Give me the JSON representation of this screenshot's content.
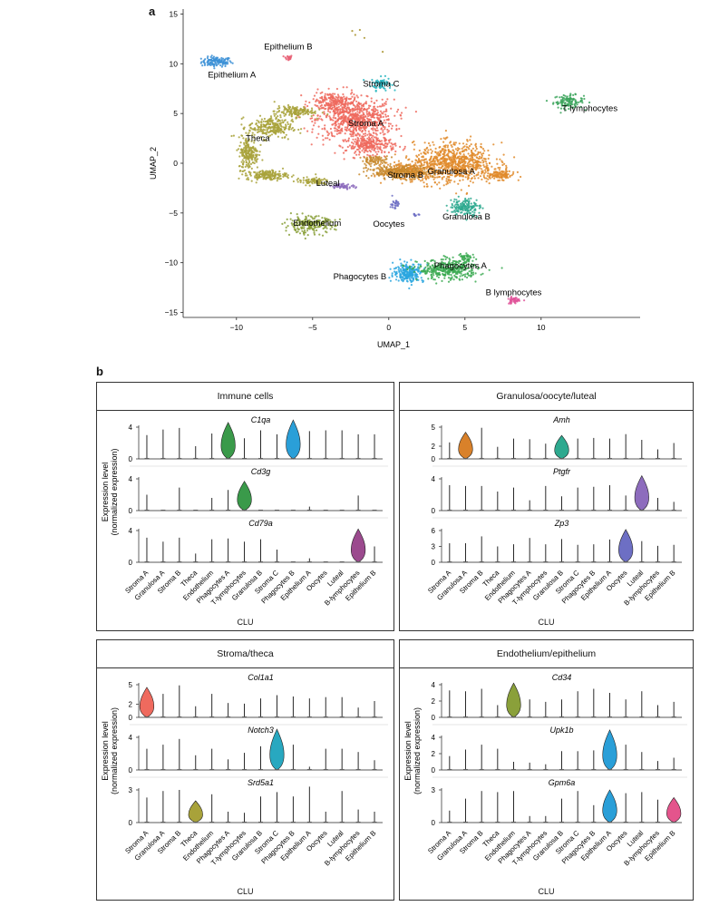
{
  "panel_labels": {
    "a": "a",
    "b": "b"
  },
  "clu_label": "CLU",
  "chart_data": [
    {
      "type": "scatter",
      "name": "umap",
      "xlabel": "UMAP_1",
      "ylabel": "UMAP_2",
      "xlim": [
        -13.5,
        16.5
      ],
      "ylim": [
        -15.5,
        15.5
      ],
      "x_ticks": [
        -10,
        -5,
        0,
        5,
        10
      ],
      "y_ticks": [
        -15,
        -10,
        -5,
        0,
        5,
        10,
        15
      ],
      "clusters": [
        {
          "label": "Epithelium A",
          "color": "#3a8fd6",
          "blobs": [
            [
              -11.3,
              10.2,
              0.9,
              0.45,
              120
            ]
          ],
          "label_pos": [
            -10.3,
            8.9
          ]
        },
        {
          "label": "Epithelium B",
          "color": "#e86075",
          "blobs": [
            [
              -6.6,
              10.6,
              0.25,
              0.25,
              25
            ]
          ],
          "label_pos": [
            -6.6,
            11.7
          ]
        },
        {
          "label": "Stroma C",
          "color": "#28b6c0",
          "blobs": [
            [
              -0.5,
              8.0,
              0.6,
              0.6,
              70
            ]
          ],
          "label_pos": [
            -0.5,
            8.0
          ]
        },
        {
          "label": "T lymphocytes",
          "color": "#3aa35a",
          "blobs": [
            [
              11.8,
              6.2,
              0.9,
              0.6,
              110
            ]
          ],
          "label_pos": [
            13.2,
            5.5
          ]
        },
        {
          "label": "Stroma A",
          "color": "#ef6a5e",
          "blobs": [
            [
              -2.2,
              4.4,
              2.3,
              1.8,
              700
            ],
            [
              -1.2,
              1.8,
              1.5,
              0.8,
              250
            ],
            [
              -3.6,
              6.2,
              1.3,
              0.9,
              200
            ]
          ],
          "label_pos": [
            -1.5,
            4.0
          ]
        },
        {
          "label": "Theca",
          "color": "#a8a23a",
          "blobs": [
            [
              -7.8,
              3.6,
              1.3,
              1.0,
              250
            ],
            [
              -9.2,
              1.0,
              0.6,
              1.5,
              200
            ],
            [
              -8.0,
              -1.2,
              1.2,
              0.45,
              160
            ],
            [
              -6.2,
              5.2,
              1.2,
              0.5,
              140
            ],
            [
              -5.0,
              -1.8,
              1.0,
              0.35,
              80
            ]
          ],
          "label_pos": [
            -8.6,
            2.5
          ]
        },
        {
          "label": "Granulosa A",
          "color": "#e18b2b",
          "blobs": [
            [
              4.3,
              0.0,
              2.4,
              1.8,
              800
            ],
            [
              7.3,
              -1.2,
              0.9,
              0.4,
              110
            ],
            [
              1.2,
              -0.8,
              1.4,
              0.8,
              230
            ]
          ],
          "label_pos": [
            4.1,
            -0.8
          ]
        },
        {
          "label": "Stroma B",
          "color": "#c88a2e",
          "blobs": [
            [
              0.6,
              -0.9,
              1.8,
              0.6,
              250
            ],
            [
              -0.9,
              0.3,
              0.8,
              0.4,
              80
            ]
          ],
          "label_pos": [
            1.1,
            -1.2
          ]
        },
        {
          "label": "Luteal",
          "color": "#8d6cbd",
          "blobs": [
            [
              -3.0,
              -2.3,
              0.7,
              0.22,
              60
            ]
          ],
          "label_pos": [
            -4.0,
            -2.0
          ]
        },
        {
          "label": "Granulosa B",
          "color": "#2ea98f",
          "blobs": [
            [
              5.0,
              -4.4,
              0.9,
              0.8,
              160
            ]
          ],
          "label_pos": [
            5.1,
            -5.4
          ]
        },
        {
          "label": "Oocytes",
          "color": "#6d6fc4",
          "blobs": [
            [
              0.4,
              -4.1,
              0.25,
              0.5,
              30
            ],
            [
              1.7,
              -5.2,
              0.25,
              0.12,
              10
            ]
          ],
          "label_pos": [
            0.0,
            -6.1
          ]
        },
        {
          "label": "Endothelium",
          "color": "#8aa03a",
          "blobs": [
            [
              -5.2,
              -6.2,
              1.5,
              0.75,
              220
            ]
          ],
          "label_pos": [
            -4.7,
            -6.0
          ]
        },
        {
          "label": "Phagocytes B",
          "color": "#2aa6df",
          "blobs": [
            [
              1.3,
              -11.0,
              0.9,
              0.85,
              240
            ]
          ],
          "label_pos": [
            -1.9,
            -11.4
          ]
        },
        {
          "label": "Phagocytes A",
          "color": "#3caa52",
          "blobs": [
            [
              3.9,
              -10.7,
              1.8,
              0.9,
              360
            ],
            [
              5.0,
              -9.5,
              0.5,
              0.4,
              40
            ]
          ],
          "label_pos": [
            4.7,
            -10.3
          ]
        },
        {
          "label": "B lymphocytes",
          "color": "#e0559a",
          "blobs": [
            [
              8.2,
              -13.8,
              0.35,
              0.3,
              50
            ]
          ],
          "label_pos": [
            8.2,
            -13.0
          ]
        }
      ],
      "stray_points": [
        [
          -1.9,
          13.4
        ],
        [
          -2.4,
          13.3
        ],
        [
          -2.2,
          12.9
        ],
        [
          -1.6,
          12.6
        ],
        [
          -0.4,
          11.2
        ]
      ]
    },
    {
      "type": "violin",
      "name": "immune-cells",
      "title": "Immune cells",
      "ylabel": "Expression level\n(normalized expression)",
      "categories": [
        "Stroma A",
        "Granulosa A",
        "Stroma B",
        "Theca",
        "Endothelium",
        "Phagocytes A",
        "T-lymphocytes",
        "Granulosa B",
        "Stroma C",
        "Phagocytes B",
        "Epithelium A",
        "Oocytes",
        "Luteal",
        "B-lymphocytes",
        "Epithelium B"
      ],
      "genes": [
        {
          "gene": "C1qa",
          "ymax": 4,
          "ticks": [
            0,
            4
          ],
          "highlight": [
            5,
            9
          ],
          "highlight_colors": [
            "#3a9a4a",
            "#2a9fd8"
          ],
          "max_values": [
            3.0,
            3.7,
            3.9,
            1.6,
            3.2,
            4.6,
            2.6,
            3.6,
            3.1,
            4.9,
            3.5,
            3.6,
            3.6,
            3.1,
            3.1
          ]
        },
        {
          "gene": "Cd3g",
          "ymax": 4,
          "ticks": [
            0,
            4
          ],
          "highlight": [
            6
          ],
          "highlight_colors": [
            "#3a9a4a"
          ],
          "max_values": [
            2.0,
            0.0,
            2.9,
            0.0,
            1.6,
            2.6,
            3.7,
            0.0,
            0.0,
            0.0,
            0.5,
            0.0,
            0.0,
            1.9,
            0.0
          ]
        },
        {
          "gene": "Cd79a",
          "ymax": 4,
          "ticks": [
            0,
            4
          ],
          "highlight": [
            13
          ],
          "highlight_colors": [
            "#9b4a8e"
          ],
          "max_values": [
            3.1,
            2.6,
            3.1,
            1.1,
            2.9,
            3.0,
            2.6,
            2.9,
            1.6,
            0.0,
            0.5,
            0.0,
            0.0,
            4.2,
            2.0
          ]
        }
      ]
    },
    {
      "type": "violin",
      "name": "granulosa-oocyte-luteal",
      "title": "Granulosa/oocyte/luteal",
      "ylabel": "",
      "categories": [
        "Stroma A",
        "Granulosa A",
        "Stroma B",
        "Theca",
        "Endothelium",
        "Phagocytes A",
        "T-lymphocytes",
        "Granulosa B",
        "Stroma C",
        "Phagocytes B",
        "Epithelium A",
        "Oocytes",
        "Luteal",
        "B-lymphocytes",
        "Epithelium B"
      ],
      "genes": [
        {
          "gene": "Amh",
          "ymax": 5,
          "ticks": [
            0,
            2,
            5
          ],
          "highlight": [
            1,
            7
          ],
          "highlight_colors": [
            "#d9812a",
            "#2ea98f"
          ],
          "max_values": [
            2.6,
            4.2,
            4.9,
            1.9,
            3.2,
            3.1,
            2.4,
            3.7,
            3.2,
            3.3,
            3.2,
            3.9,
            3.0,
            1.5,
            2.5
          ]
        },
        {
          "gene": "Ptgfr",
          "ymax": 4,
          "ticks": [
            0,
            4
          ],
          "highlight": [
            12
          ],
          "highlight_colors": [
            "#8d6cbd"
          ],
          "max_values": [
            3.2,
            3.1,
            3.1,
            2.4,
            2.9,
            1.3,
            3.1,
            1.8,
            2.9,
            3.0,
            3.2,
            1.9,
            4.4,
            1.6,
            1.1
          ]
        },
        {
          "gene": "Zp3",
          "ymax": 6,
          "ticks": [
            0,
            3,
            6
          ],
          "highlight": [
            11
          ],
          "highlight_colors": [
            "#6d6fc4"
          ],
          "max_values": [
            3.6,
            3.6,
            4.9,
            3.0,
            3.4,
            4.6,
            3.4,
            4.4,
            3.3,
            3.4,
            4.3,
            6.2,
            4.0,
            3.1,
            3.3
          ]
        }
      ]
    },
    {
      "type": "violin",
      "name": "stroma-theca",
      "title": "Stroma/theca",
      "ylabel": "Expression level\n(normalized expression)",
      "categories": [
        "Stroma A",
        "Granulosa A",
        "Stroma B",
        "Theca",
        "Endothelium",
        "Phagocytes A",
        "T-lymphocytes",
        "Granulosa B",
        "Stroma C",
        "Phagocytes B",
        "Epithelium A",
        "Oocytes",
        "Luteal",
        "B-lymphocytes",
        "Epithelium B"
      ],
      "genes": [
        {
          "gene": "Col1a1",
          "ymax": 5,
          "ticks": [
            0,
            2,
            5
          ],
          "highlight": [
            0
          ],
          "highlight_colors": [
            "#ef6a5e"
          ],
          "max_values": [
            4.6,
            3.6,
            4.9,
            1.7,
            3.6,
            2.2,
            2.1,
            2.9,
            3.4,
            3.2,
            2.9,
            3.1,
            3.1,
            1.5,
            2.5
          ]
        },
        {
          "gene": "Notch3",
          "ymax": 4,
          "ticks": [
            0,
            4
          ],
          "highlight": [
            8
          ],
          "highlight_colors": [
            "#28a8c0"
          ],
          "max_values": [
            2.6,
            3.1,
            3.8,
            1.8,
            2.6,
            1.3,
            2.1,
            2.9,
            5.0,
            3.1,
            0.4,
            2.6,
            2.6,
            2.2,
            1.2
          ]
        },
        {
          "gene": "Srd5a1",
          "ymax": 3,
          "ticks": [
            0,
            3
          ],
          "highlight": [
            3
          ],
          "highlight_colors": [
            "#a8a23a"
          ],
          "max_values": [
            2.3,
            2.9,
            3.0,
            2.0,
            2.6,
            1.0,
            0.9,
            2.4,
            2.8,
            2.4,
            3.3,
            1.0,
            2.9,
            1.2,
            1.0
          ]
        }
      ]
    },
    {
      "type": "violin",
      "name": "endothelium-epithelium",
      "title": "Endothelium/epithelium",
      "ylabel": "Expression level\n(normalized expression)",
      "categories": [
        "Stroma A",
        "Granulosa A",
        "Stroma B",
        "Theca",
        "Endothelium",
        "Phagocytes A",
        "T-lymphocytes",
        "Granulosa B",
        "Stroma C",
        "Phagocytes B",
        "Epithelium A",
        "Oocytes",
        "Luteal",
        "B-lymphocytes",
        "Epithelium B"
      ],
      "genes": [
        {
          "gene": "Cd34",
          "ymax": 4,
          "ticks": [
            0,
            2,
            4
          ],
          "highlight": [
            4
          ],
          "highlight_colors": [
            "#8aa03a"
          ],
          "max_values": [
            3.3,
            3.2,
            3.5,
            1.5,
            4.2,
            2.2,
            1.9,
            2.2,
            3.2,
            3.5,
            3.0,
            2.2,
            3.2,
            1.5,
            1.9
          ]
        },
        {
          "gene": "Upk1b",
          "ymax": 4,
          "ticks": [
            0,
            2,
            4
          ],
          "highlight": [
            10
          ],
          "highlight_colors": [
            "#2a9fd8"
          ],
          "max_values": [
            1.7,
            2.5,
            3.1,
            2.6,
            1.0,
            0.9,
            0.7,
            2.3,
            2.3,
            2.4,
            4.9,
            3.1,
            2.2,
            1.1,
            1.5
          ]
        },
        {
          "gene": "Gpm6a",
          "ymax": 3,
          "ticks": [
            0,
            3
          ],
          "highlight": [
            10,
            14
          ],
          "highlight_colors": [
            "#2a9fd8",
            "#e4548c"
          ],
          "max_values": [
            1.1,
            2.2,
            2.9,
            2.8,
            2.9,
            0.6,
            0.6,
            2.2,
            2.9,
            1.6,
            3.0,
            2.7,
            2.8,
            2.1,
            2.3
          ]
        }
      ]
    }
  ]
}
